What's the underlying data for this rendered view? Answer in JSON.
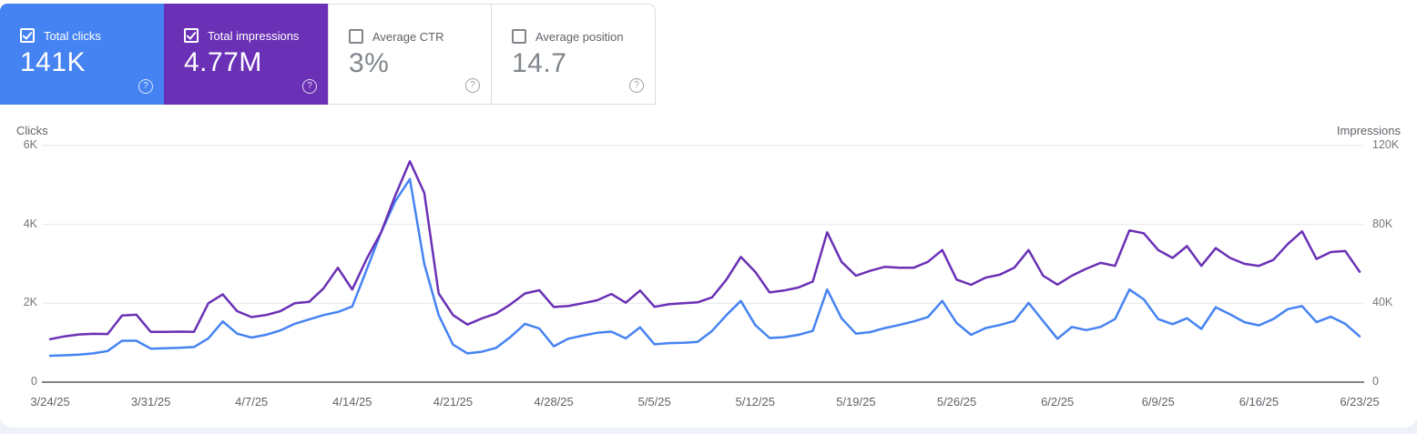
{
  "colors": {
    "clicks": "#4683f2",
    "impressions": "#6a30b5",
    "grid": "#e8eaed",
    "axis_line": "#80868b",
    "axis_text": "#5f6368",
    "tick_text": "#757575",
    "card_border": "#dadce0",
    "unselected_value": "#80868b",
    "page_bg": "#eef1f8"
  },
  "help_glyph": "?",
  "cards": [
    {
      "label": "Total clicks",
      "value": "141K",
      "selected": true,
      "checkbox": "checked"
    },
    {
      "label": "Total impressions",
      "value": "4.77M",
      "selected": true,
      "checkbox": "checked"
    },
    {
      "label": "Average CTR",
      "value": "3%",
      "selected": false,
      "checkbox": "unchecked"
    },
    {
      "label": "Average position",
      "value": "14.7",
      "selected": false,
      "checkbox": "unchecked"
    }
  ],
  "chart_data": {
    "type": "line",
    "grid": "horizontal",
    "legend_position": "none",
    "left_axis": {
      "label": "Clicks",
      "ticks": [
        "0",
        "2K",
        "4K",
        "6K"
      ],
      "max": 6000
    },
    "right_axis": {
      "label": "Impressions",
      "ticks": [
        "0",
        "40K",
        "80K",
        "120K"
      ],
      "max": 120000
    },
    "x_tick_labels": [
      "3/24/25",
      "3/31/25",
      "4/7/25",
      "4/14/25",
      "4/21/25",
      "4/28/25",
      "5/5/25",
      "5/12/25",
      "5/19/25",
      "5/26/25",
      "6/2/25",
      "6/9/25",
      "6/16/25",
      "6/23/25"
    ],
    "x": [
      "3/24/25",
      "3/25/25",
      "3/26/25",
      "3/27/25",
      "3/28/25",
      "3/29/25",
      "3/30/25",
      "3/31/25",
      "4/1/25",
      "4/2/25",
      "4/3/25",
      "4/4/25",
      "4/5/25",
      "4/6/25",
      "4/7/25",
      "4/8/25",
      "4/9/25",
      "4/10/25",
      "4/11/25",
      "4/12/25",
      "4/13/25",
      "4/14/25",
      "4/15/25",
      "4/16/25",
      "4/17/25",
      "4/18/25",
      "4/19/25",
      "4/20/25",
      "4/21/25",
      "4/22/25",
      "4/23/25",
      "4/24/25",
      "4/25/25",
      "4/26/25",
      "4/27/25",
      "4/28/25",
      "4/29/25",
      "4/30/25",
      "5/1/25",
      "5/2/25",
      "5/3/25",
      "5/4/25",
      "5/5/25",
      "5/6/25",
      "5/7/25",
      "5/8/25",
      "5/9/25",
      "5/10/25",
      "5/11/25",
      "5/12/25",
      "5/13/25",
      "5/14/25",
      "5/15/25",
      "5/16/25",
      "5/17/25",
      "5/18/25",
      "5/19/25",
      "5/20/25",
      "5/21/25",
      "5/22/25",
      "5/23/25",
      "5/24/25",
      "5/25/25",
      "5/26/25",
      "5/27/25",
      "5/28/25",
      "5/29/25",
      "5/30/25",
      "5/31/25",
      "6/1/25",
      "6/2/25",
      "6/3/25",
      "6/4/25",
      "6/5/25",
      "6/6/25",
      "6/7/25",
      "6/8/25",
      "6/9/25",
      "6/10/25",
      "6/11/25",
      "6/12/25",
      "6/13/25",
      "6/14/25",
      "6/15/25",
      "6/16/25",
      "6/17/25",
      "6/18/25",
      "6/19/25",
      "6/20/25",
      "6/21/25",
      "6/22/25",
      "6/23/25"
    ],
    "series": [
      {
        "name": "Clicks",
        "axis": "left",
        "total": "141K",
        "values": [
          670,
          680,
          700,
          730,
          790,
          1050,
          1050,
          850,
          860,
          870,
          890,
          1110,
          1540,
          1230,
          1130,
          1200,
          1310,
          1480,
          1590,
          1700,
          1780,
          1920,
          2850,
          3800,
          4600,
          5150,
          3000,
          1700,
          950,
          730,
          770,
          870,
          1150,
          1480,
          1360,
          910,
          1100,
          1180,
          1250,
          1280,
          1110,
          1390,
          960,
          990,
          1000,
          1020,
          1300,
          1700,
          2060,
          1450,
          1120,
          1140,
          1200,
          1300,
          2350,
          1620,
          1230,
          1270,
          1370,
          1450,
          1540,
          1650,
          2060,
          1500,
          1200,
          1370,
          1450,
          1550,
          2010,
          1550,
          1100,
          1400,
          1320,
          1400,
          1600,
          2350,
          2100,
          1600,
          1470,
          1620,
          1350,
          1900,
          1720,
          1520,
          1440,
          1600,
          1850,
          1930,
          1520,
          1660,
          1480,
          1160
        ]
      },
      {
        "name": "Impressions",
        "axis": "right",
        "total": "4.77M",
        "values": [
          21800,
          23200,
          24200,
          24500,
          24400,
          33800,
          34200,
          25500,
          25500,
          25600,
          25500,
          40000,
          44500,
          36000,
          33000,
          34000,
          36000,
          40000,
          40700,
          47500,
          58000,
          47000,
          62500,
          76000,
          95000,
          112000,
          96000,
          45000,
          34000,
          29200,
          32300,
          34800,
          39500,
          45000,
          46600,
          38100,
          38600,
          40000,
          41500,
          44700,
          40300,
          46500,
          38200,
          39500,
          40000,
          40500,
          43000,
          52000,
          63500,
          56000,
          45500,
          46500,
          48000,
          51000,
          76000,
          61000,
          54000,
          56500,
          58500,
          58000,
          58000,
          61000,
          67000,
          52000,
          49400,
          53000,
          54500,
          58000,
          67000,
          54000,
          49500,
          54000,
          57500,
          60500,
          59000,
          77000,
          75500,
          67000,
          63000,
          69000,
          59000,
          68000,
          63000,
          60000,
          59000,
          62000,
          70000,
          76500,
          62500,
          66000,
          66500,
          56000
        ]
      }
    ]
  }
}
